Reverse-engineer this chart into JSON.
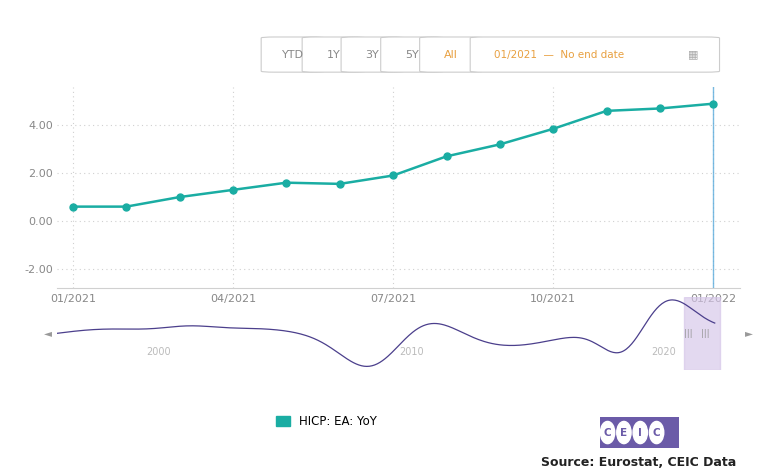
{
  "main_x": [
    0,
    1,
    2,
    3,
    4,
    5,
    6,
    7,
    8,
    9,
    10,
    11,
    12
  ],
  "main_y": [
    0.6,
    0.6,
    1.0,
    1.3,
    1.6,
    1.55,
    1.9,
    2.7,
    3.2,
    3.85,
    4.6,
    4.7,
    4.9
  ],
  "main_line_color": "#1AADA3",
  "main_marker_size": 5,
  "ylim": [
    -2.8,
    5.6
  ],
  "yticks": [
    -2.0,
    0.0,
    2.0,
    4.0
  ],
  "grid_color": "#d0d0d0",
  "bg_color": "#ffffff",
  "nav_buttons": [
    "YTD",
    "1Y",
    "3Y",
    "5Y",
    "All"
  ],
  "nav_date_text": "01/2021  —  No end date",
  "nav_button_border": "#cccccc",
  "nav_text_color": "#888888",
  "nav_date_color": "#e8a040",
  "legend_label": "HICP: EA: YoY",
  "legend_color": "#1AADA3",
  "source_text": "Source: Eurostat, CEIC Data",
  "source_fontsize": 9,
  "mini_line_color": "#4B3F8C",
  "mini_bg_color": "#eaf4f8",
  "mini_highlight_color": "#d5c5e8",
  "xtick_color": "#888888",
  "ytick_color": "#888888",
  "vline_color": "#5aabdc",
  "ceic_bg": "#6B5BA8"
}
